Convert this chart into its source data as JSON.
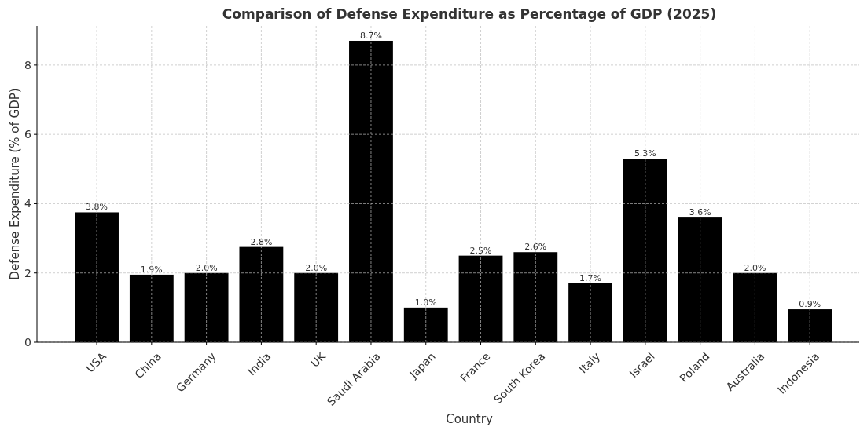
{
  "chart_data": {
    "type": "bar",
    "title": "Comparison of Defense Expenditure as Percentage of GDP (2025)",
    "xlabel": "Country",
    "ylabel": "Defense Expenditure (% of GDP)",
    "categories": [
      "USA",
      "China",
      "Germany",
      "India",
      "UK",
      "Saudi Arabia",
      "Japan",
      "France",
      "South Korea",
      "Italy",
      "Israel",
      "Poland",
      "Australia",
      "Indonesia"
    ],
    "values": [
      3.75,
      1.95,
      2.0,
      2.75,
      2.0,
      8.7,
      1.0,
      2.5,
      2.6,
      1.7,
      5.3,
      3.6,
      2.0,
      0.95
    ],
    "value_labels": [
      "3.8%",
      "1.9%",
      "2.0%",
      "2.8%",
      "2.0%",
      "8.7%",
      "1.0%",
      "2.5%",
      "2.6%",
      "1.7%",
      "5.3%",
      "3.6%",
      "2.0%",
      "0.9%"
    ],
    "color": "#000000",
    "ylim": [
      0,
      9.13
    ],
    "yticks": [
      0,
      2,
      4,
      6,
      8
    ],
    "grid": true
  }
}
